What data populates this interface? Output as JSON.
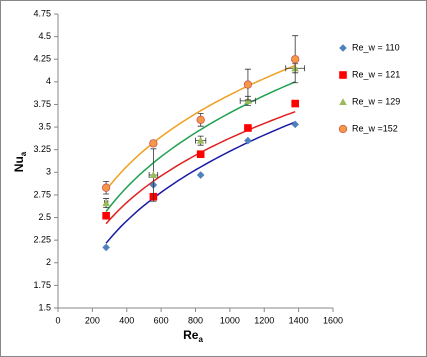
{
  "chart_data": {
    "type": "scatter",
    "x_label": {
      "main": "Re",
      "sub": "a"
    },
    "y_label": {
      "main": "Nu",
      "sub": "a"
    },
    "xlim": [
      0,
      1600
    ],
    "xticks": [
      0,
      200,
      400,
      600,
      800,
      1000,
      1200,
      1400,
      1600
    ],
    "ylim": [
      1.5,
      4.75
    ],
    "yticks": [
      1.5,
      1.75,
      2,
      2.25,
      2.5,
      2.75,
      3,
      3.25,
      3.5,
      3.75,
      4,
      4.25,
      4.5,
      4.75
    ],
    "grid": false,
    "trendline": "power",
    "legend": "right",
    "series": [
      {
        "name": "Re_w = 110",
        "color": "#4f81bd",
        "line_color": "#1a1aa8",
        "marker": "diamond",
        "x": [
          280,
          555,
          830,
          1105,
          1380
        ],
        "values": [
          2.17,
          2.86,
          2.97,
          3.35,
          3.53
        ]
      },
      {
        "name": "Re_w = 121",
        "color": "#ff0000",
        "line_color": "#e02020",
        "marker": "square",
        "x": [
          280,
          555,
          830,
          1105,
          1380
        ],
        "values": [
          2.52,
          2.73,
          3.2,
          3.49,
          3.76
        ]
      },
      {
        "name": "Re_w = 129",
        "color": "#9bbb59",
        "line_color": "#1fa050",
        "marker": "triangle",
        "x": [
          280,
          555,
          830,
          1105,
          1380
        ],
        "values": [
          2.66,
          2.97,
          3.35,
          3.79,
          4.15
        ],
        "y_errors": [
          0.05,
          0.29,
          0.05,
          0.05,
          0.05
        ],
        "x_errors": [
          10,
          25,
          30,
          45,
          55
        ]
      },
      {
        "name": "Re_w =152",
        "color": "#f79646",
        "line_color": "#f0a020",
        "marker": "circle",
        "x": [
          280,
          555,
          830,
          1105,
          1380
        ],
        "values": [
          2.83,
          3.32,
          3.58,
          3.97,
          4.25
        ],
        "y_errors": [
          0.07,
          0.03,
          0.07,
          0.17,
          0.26
        ]
      }
    ]
  }
}
